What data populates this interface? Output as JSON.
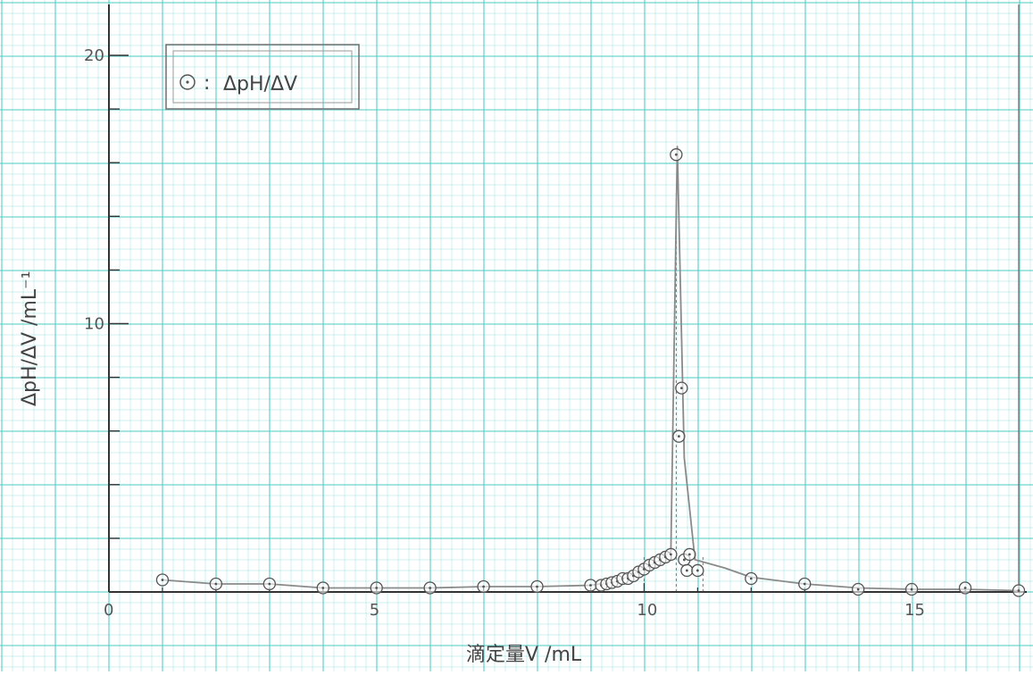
{
  "chart_data": {
    "type": "scatter",
    "xlabel": "滴定量V /mL",
    "ylabel": "ΔpH/ΔV /mL⁻¹",
    "xlim": [
      0,
      17
    ],
    "ylim": [
      0,
      22
    ],
    "x_ticks": [
      0,
      5,
      10,
      15
    ],
    "x_tick_labels": [
      "0",
      "5",
      "10",
      "15"
    ],
    "y_ticks": [
      10,
      20
    ],
    "y_tick_labels": [
      "10",
      "20"
    ],
    "grid": true,
    "grid_color": "#5ecfc9",
    "legend_position": "top-left",
    "series": [
      {
        "name": "ΔpH/ΔV",
        "marker": "circle-dot",
        "color": "#555555",
        "x": [
          1,
          2,
          3,
          4,
          5,
          6,
          7,
          8,
          9,
          9.2,
          9.3,
          9.4,
          9.5,
          9.6,
          9.7,
          9.8,
          9.9,
          10.0,
          10.1,
          10.2,
          10.3,
          10.4,
          10.5,
          10.6,
          10.65,
          10.7,
          10.75,
          10.8,
          10.85,
          11,
          12,
          13,
          14,
          15,
          16,
          17
        ],
        "y": [
          0.45,
          0.3,
          0.3,
          0.15,
          0.15,
          0.15,
          0.2,
          0.2,
          0.25,
          0.25,
          0.3,
          0.35,
          0.4,
          0.5,
          0.5,
          0.6,
          0.75,
          0.85,
          1.0,
          1.1,
          1.2,
          1.3,
          1.4,
          16.3,
          5.8,
          7.6,
          1.2,
          0.8,
          1.4,
          0.8,
          0.5,
          0.3,
          0.1,
          0.1,
          0.15,
          0.05
        ]
      }
    ],
    "curve": {
      "x": [
        1,
        2,
        3,
        4,
        5,
        6,
        7,
        8,
        9,
        9.5,
        10.0,
        10.3,
        10.5,
        10.62,
        10.75,
        10.95,
        11.5,
        12,
        13,
        14,
        15,
        16,
        17
      ],
      "y": [
        0.45,
        0.3,
        0.3,
        0.15,
        0.15,
        0.15,
        0.2,
        0.2,
        0.25,
        0.4,
        0.85,
        1.2,
        1.5,
        16.6,
        5.0,
        1.2,
        0.9,
        0.55,
        0.3,
        0.15,
        0.1,
        0.1,
        0.05
      ]
    },
    "equivalence_guides_x": [
      10.0,
      10.6,
      11.1
    ]
  }
}
